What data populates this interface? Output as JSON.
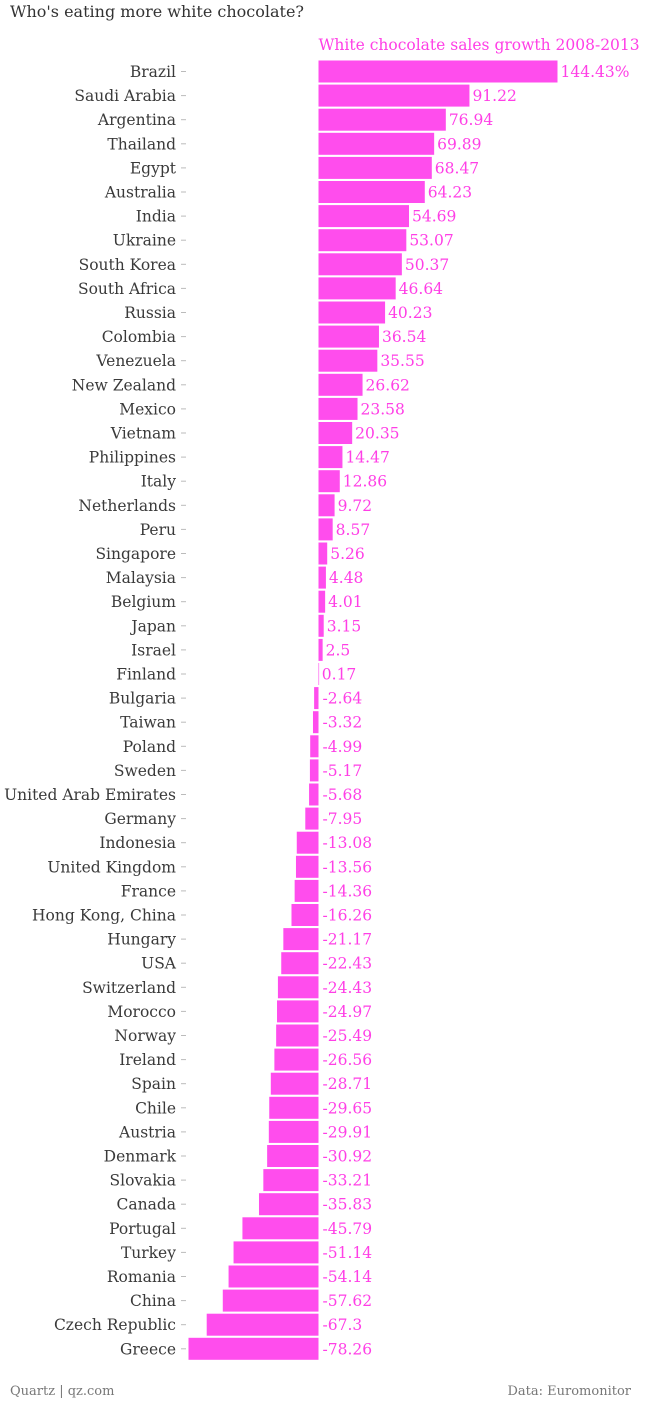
{
  "page": {
    "title": "Who's eating more white chocolate?",
    "source_left": "Quartz | qz.com",
    "source_right": "Data: Euromonitor"
  },
  "colors": {
    "bar": "#ff4ded",
    "label": "#ff3fe6",
    "text": "#3a3a3a"
  },
  "chart_data": {
    "type": "bar",
    "orientation": "horizontal",
    "series": [
      {
        "name": "White chocolate sales growth 2008-2013",
        "unit": "%",
        "values": [
          144.43,
          91.22,
          76.94,
          69.89,
          68.47,
          64.23,
          54.69,
          53.07,
          50.37,
          46.64,
          40.23,
          36.54,
          35.55,
          26.62,
          23.58,
          20.35,
          14.47,
          12.86,
          9.72,
          8.57,
          5.26,
          4.48,
          4.01,
          3.15,
          2.5,
          0.17,
          -2.64,
          -3.32,
          -4.99,
          -5.17,
          -5.68,
          -7.95,
          -13.08,
          -13.56,
          -14.36,
          -16.26,
          -21.17,
          -22.43,
          -24.43,
          -24.97,
          -25.49,
          -26.56,
          -28.71,
          -29.65,
          -29.91,
          -30.92,
          -33.21,
          -35.83,
          -45.79,
          -51.14,
          -54.14,
          -57.62,
          -67.3,
          -78.26
        ],
        "value_labels": [
          "144.43%",
          "91.22",
          "76.94",
          "69.89",
          "68.47",
          "64.23",
          "54.69",
          "53.07",
          "50.37",
          "46.64",
          "40.23",
          "36.54",
          "35.55",
          "26.62",
          "23.58",
          "20.35",
          "14.47",
          "12.86",
          "9.72",
          "8.57",
          "5.26",
          "4.48",
          "4.01",
          "3.15",
          "2.5",
          "0.17",
          "-2.64",
          "-3.32",
          "-4.99",
          "-5.17",
          "-5.68",
          "-7.95",
          "-13.08",
          "-13.56",
          "-14.36",
          "-16.26",
          "-21.17",
          "-22.43",
          "-24.43",
          "-24.97",
          "-25.49",
          "-26.56",
          "-28.71",
          "-29.65",
          "-29.91",
          "-30.92",
          "-33.21",
          "-35.83",
          "-45.79",
          "-51.14",
          "-54.14",
          "-57.62",
          "-67.3",
          "-78.26"
        ]
      }
    ],
    "categories": [
      "Brazil",
      "Saudi Arabia",
      "Argentina",
      "Thailand",
      "Egypt",
      "Australia",
      "India",
      "Ukraine",
      "South Korea",
      "South Africa",
      "Russia",
      "Colombia",
      "Venezuela",
      "New Zealand",
      "Mexico",
      "Vietnam",
      "Philippines",
      "Italy",
      "Netherlands",
      "Peru",
      "Singapore",
      "Malaysia",
      "Belgium",
      "Japan",
      "Israel",
      "Finland",
      "Bulgaria",
      "Taiwan",
      "Poland",
      "Sweden",
      "United Arab Emirates",
      "Germany",
      "Indonesia",
      "United Kingdom",
      "France",
      "Hong Kong, China",
      "Hungary",
      "USA",
      "Switzerland",
      "Morocco",
      "Norway",
      "Ireland",
      "Spain",
      "Chile",
      "Austria",
      "Denmark",
      "Slovakia",
      "Canada",
      "Portugal",
      "Turkey",
      "Romania",
      "China",
      "Czech Republic",
      "Greece"
    ],
    "xlim": [
      -78.26,
      144.43
    ],
    "grid": false,
    "legend": "none"
  }
}
